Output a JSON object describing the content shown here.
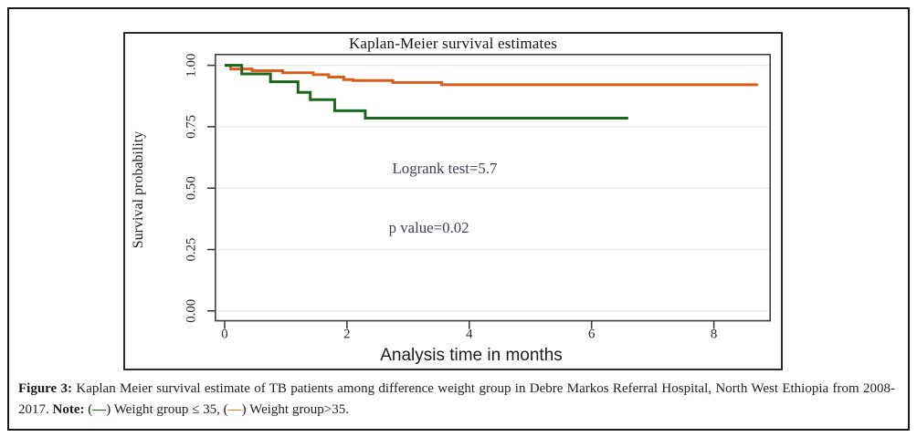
{
  "figure": {
    "title": "Kaplan-Meier survival estimates",
    "x_axis_label": "Analysis time in months",
    "y_axis_label": "Survival probability"
  },
  "chart_data": {
    "type": "line",
    "style": "kaplan-meier-step",
    "title": "Kaplan-Meier survival estimates",
    "xlabel": "Analysis time in months",
    "ylabel": "Survival probability",
    "xticks": [
      0,
      2,
      4,
      6,
      8
    ],
    "xtick_labels": [
      "0",
      "2",
      "4",
      "6",
      "8"
    ],
    "yticks": [
      0.0,
      0.25,
      0.5,
      0.75,
      1.0
    ],
    "ytick_labels": [
      "0.00",
      "0.25",
      "0.50",
      "0.75",
      "1.00"
    ],
    "xlim": [
      -0.151,
      8.92
    ],
    "ylim": [
      -0.04,
      1.044
    ],
    "grid": "horizontal-light",
    "grid_color": "#ebe8e6",
    "axis_color": "#3c3c3c",
    "legend_position": "none",
    "annotations": [
      {
        "text": "Logrank test=5.7",
        "x": 3.6,
        "y": 0.56
      },
      {
        "text": "p value=0.02",
        "x": 3.34,
        "y": 0.318
      }
    ],
    "series": [
      {
        "name": "Weight group>35",
        "color": "#dc5a1c",
        "line_width": 3,
        "steps": [
          [
            0,
            1.0
          ],
          [
            0.1,
            0.985
          ],
          [
            0.45,
            0.978
          ],
          [
            0.95,
            0.97
          ],
          [
            1.45,
            0.962
          ],
          [
            1.7,
            0.952
          ],
          [
            1.95,
            0.942
          ],
          [
            2.1,
            0.938
          ],
          [
            2.75,
            0.93
          ],
          [
            3.55,
            0.921
          ]
        ],
        "end_time": 8.72
      },
      {
        "name": "Weight group ≤ 35",
        "color": "#1d661d",
        "line_width": 3,
        "steps": [
          [
            0,
            1.0
          ],
          [
            0.28,
            0.965
          ],
          [
            0.75,
            0.933
          ],
          [
            1.2,
            0.89
          ],
          [
            1.4,
            0.86
          ],
          [
            1.8,
            0.815
          ],
          [
            2.3,
            0.785
          ]
        ],
        "end_time": 6.6
      }
    ]
  },
  "caption": {
    "figure_label": "Figure 3:",
    "body": " Kaplan Meier survival estimate of TB patients among difference weight group in Debre Markos Referral Hospital, North West Ethiopia from 2008-2017. ",
    "note_label": "Note:",
    "open_paren": " (",
    "dash": "—",
    "between": ") Weight group ≤ 35, (",
    "close": ") Weight group>35.",
    "dash1_color": "#1d661d",
    "dash2_color": "#e0821c"
  }
}
